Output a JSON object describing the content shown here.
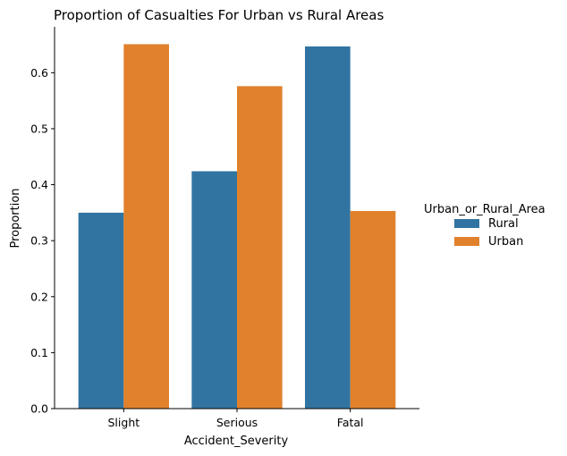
{
  "chart_data": {
    "type": "bar",
    "title": "Proportion of Casualties For Urban vs Rural Areas",
    "xlabel": "Accident_Severity",
    "ylabel": "Proportion",
    "categories": [
      "Slight",
      "Serious",
      "Fatal"
    ],
    "series": [
      {
        "name": "Rural",
        "values": [
          0.35,
          0.424,
          0.647
        ],
        "color": "#3274a1"
      },
      {
        "name": "Urban",
        "values": [
          0.651,
          0.576,
          0.353
        ],
        "color": "#e1812c"
      }
    ],
    "ylim": [
      0,
      0.682
    ],
    "yticks": [
      "0.0",
      "0.1",
      "0.2",
      "0.3",
      "0.4",
      "0.5",
      "0.6"
    ],
    "grid": false,
    "legend": {
      "title": "Urban_or_Rural_Area",
      "placement": "right"
    }
  }
}
